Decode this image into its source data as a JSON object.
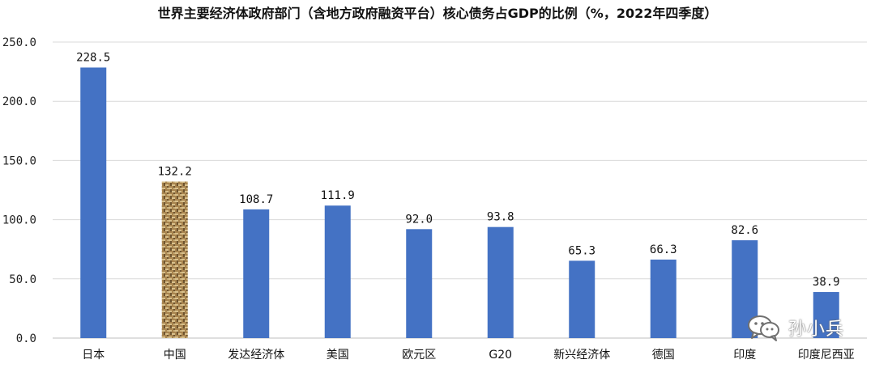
{
  "colors": {
    "bar": "#4472C4",
    "highlight_bar": "#B08E5A",
    "grid": "#D9D9D9",
    "axis": "#BFBFBF"
  },
  "watermark": {
    "text": "孙小兵",
    "icon": "wechat-icon"
  },
  "chart_data": {
    "type": "bar",
    "title": "世界主要经济体政府部门（含地方政府融资平台）核心债务占GDP的比例（%，2022年四季度）",
    "xlabel": "",
    "ylabel": "",
    "categories": [
      "日本",
      "中国",
      "发达经济体",
      "美国",
      "欧元区",
      "G20",
      "新兴经济体",
      "德国",
      "印度",
      "印度尼西亚"
    ],
    "values": [
      228.5,
      132.2,
      108.7,
      111.9,
      92.0,
      93.8,
      65.3,
      66.3,
      82.6,
      38.9
    ],
    "value_labels": [
      "228.5",
      "132.2",
      "108.7",
      "111.9",
      "92.0",
      "93.8",
      "65.3",
      "66.3",
      "82.6",
      "38.9"
    ],
    "highlight_category": "中国",
    "ylim": [
      0,
      250
    ],
    "yticks": [
      0,
      50,
      100,
      150,
      200,
      250
    ],
    "ytick_labels": [
      "0.0",
      "50.0",
      "100.0",
      "150.0",
      "200.0",
      "250.0"
    ],
    "grid": true,
    "legend": "none"
  }
}
